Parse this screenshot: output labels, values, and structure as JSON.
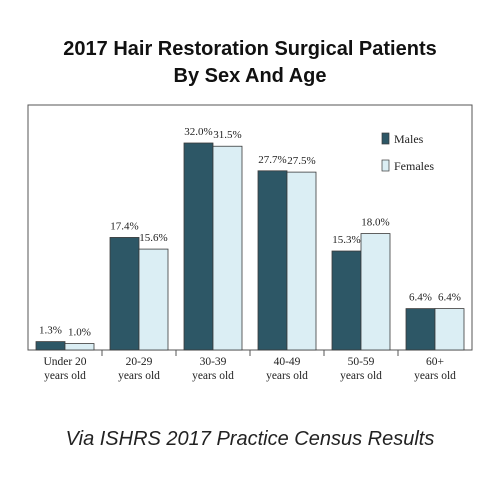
{
  "title_line1": "2017 Hair Restoration Surgical Patients",
  "title_line2": "By Sex And Age",
  "footer": "Via ISHRS 2017 Practice Census Results",
  "colors": {
    "males": "#2d5766",
    "females": "#dbeef4",
    "stroke": "#3a3a3a"
  },
  "chart_data": {
    "type": "bar",
    "categories": [
      [
        "Under 20",
        "years old"
      ],
      [
        "20-29",
        "years old"
      ],
      [
        "30-39",
        "years old"
      ],
      [
        "40-49",
        "years old"
      ],
      [
        "50-59",
        "years old"
      ],
      [
        "60+",
        "years old"
      ]
    ],
    "series": [
      {
        "name": "Males",
        "values": [
          1.3,
          17.4,
          32.0,
          27.7,
          15.3,
          6.4
        ],
        "labels": [
          "1.3%",
          "17.4%",
          "32.0%",
          "27.7%",
          "15.3%",
          "6.4%"
        ]
      },
      {
        "name": "Females",
        "values": [
          1.0,
          15.6,
          31.5,
          27.5,
          18.0,
          6.4
        ],
        "labels": [
          "1.0%",
          "15.6%",
          "31.5%",
          "27.5%",
          "18.0%",
          "6.4%"
        ]
      }
    ],
    "ylim": [
      0,
      32.0
    ],
    "legend_position": "right",
    "grid": false
  }
}
